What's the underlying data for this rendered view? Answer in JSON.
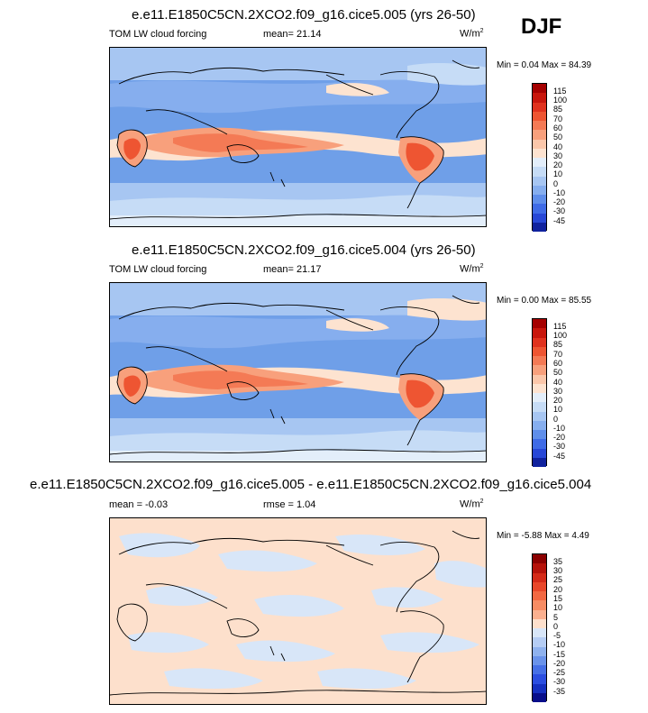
{
  "season": "DJF",
  "panels": [
    {
      "title": "e.e11.E1850C5CN.2XCO2.f09_g16.cice5.005 (yrs 26-50)",
      "left_label": "TOM LW cloud forcing",
      "mid_label": "mean=  21.14",
      "units": "W/m",
      "units_sup": "2",
      "minmax": "Min =  0.04 Max =  84.39",
      "colorbar_labels": [
        "115",
        "100",
        "85",
        "70",
        "60",
        "50",
        "40",
        "30",
        "20",
        "10",
        "0",
        "-10",
        "-20",
        "-30",
        "-45"
      ],
      "colorbar_colors": [
        "#a50000",
        "#c8160c",
        "#e0321e",
        "#ee5532",
        "#f47a55",
        "#f8a07c",
        "#fbc7aa",
        "#fde3d0",
        "#e3eefa",
        "#c6dcf6",
        "#a7c6f2",
        "#86aeee",
        "#5f8eea",
        "#3f6be6",
        "#2747d6",
        "#10229e"
      ]
    },
    {
      "title": "e.e11.E1850C5CN.2XCO2.f09_g16.cice5.004 (yrs 26-50)",
      "left_label": "TOM LW cloud forcing",
      "mid_label": "mean=  21.17",
      "units": "W/m",
      "units_sup": "2",
      "minmax": "Min =  0.00 Max =  85.55",
      "colorbar_labels": [
        "115",
        "100",
        "85",
        "70",
        "60",
        "50",
        "40",
        "30",
        "20",
        "10",
        "0",
        "-10",
        "-20",
        "-30",
        "-45"
      ],
      "colorbar_colors": [
        "#a50000",
        "#c8160c",
        "#e0321e",
        "#ee5532",
        "#f47a55",
        "#f8a07c",
        "#fbc7aa",
        "#fde3d0",
        "#e3eefa",
        "#c6dcf6",
        "#a7c6f2",
        "#86aeee",
        "#5f8eea",
        "#3f6be6",
        "#2747d6",
        "#10229e"
      ]
    },
    {
      "title": "e.e11.E1850C5CN.2XCO2.f09_g16.cice5.005 - e.e11.E1850C5CN.2XCO2.f09_g16.cice5.004",
      "left_label": "mean = -0.03",
      "mid_label": "rmse =  1.04",
      "units": "W/m",
      "units_sup": "2",
      "minmax": "Min = -5.88 Max =  4.49",
      "colorbar_labels": [
        "35",
        "30",
        "25",
        "20",
        "15",
        "10",
        "5",
        "0",
        "-5",
        "-10",
        "-15",
        "-20",
        "-25",
        "-30",
        "-35"
      ],
      "colorbar_colors": [
        "#8b0000",
        "#b5120a",
        "#d42a18",
        "#e8472a",
        "#f26842",
        "#f78c63",
        "#fbb08f",
        "#fde0cc",
        "#d8e6f8",
        "#b5cdf4",
        "#8fb2ee",
        "#6a93ea",
        "#4670e6",
        "#2b4ee0",
        "#1530c0",
        "#080e8a"
      ]
    }
  ],
  "colors": {
    "ocean_blue": "#6f9fe8",
    "light_blue": "#c6dcf6",
    "peach": "#fde3d0",
    "orange": "#f47a55",
    "red": "#e0321e"
  }
}
